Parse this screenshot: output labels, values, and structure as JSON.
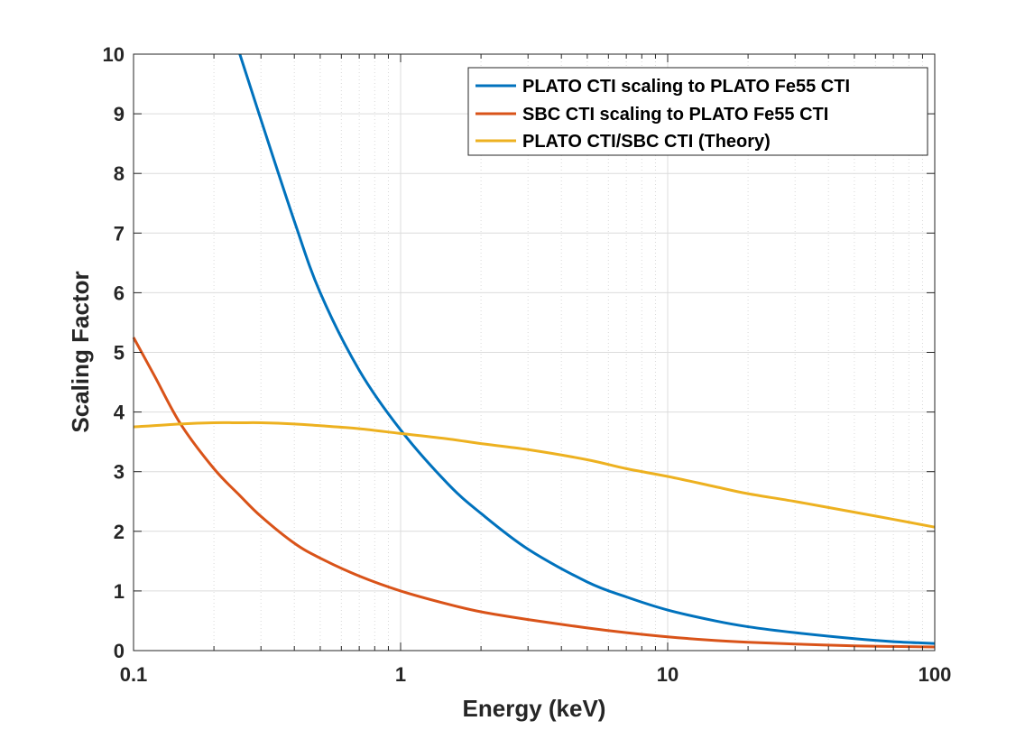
{
  "chart_data": {
    "type": "line",
    "title": "",
    "xlabel": "Energy (keV)",
    "ylabel": "Scaling Factor",
    "xscale": "log",
    "xlim": [
      0.1,
      100
    ],
    "ylim": [
      0,
      10
    ],
    "grid": true,
    "minor_grid": true,
    "legend_location": "top-right",
    "x_tick_labels": [
      "0.1",
      "1",
      "10",
      "100"
    ],
    "x_ticks": [
      0.1,
      1,
      10,
      100
    ],
    "y_ticks": [
      0,
      1,
      2,
      3,
      4,
      5,
      6,
      7,
      8,
      9,
      10
    ],
    "y_tick_labels": [
      "0",
      "1",
      "2",
      "3",
      "4",
      "5",
      "6",
      "7",
      "8",
      "9",
      "10"
    ],
    "series": [
      {
        "name": "PLATO CTI scaling to PLATO Fe55 CTI",
        "color": "#0072BD",
        "x": [
          0.25,
          0.3,
          0.4,
          0.5,
          0.7,
          1,
          1.5,
          2,
          3,
          5,
          7,
          10,
          15,
          20,
          30,
          50,
          70,
          100
        ],
        "y": [
          10.0,
          8.9,
          7.2,
          6.0,
          4.7,
          3.7,
          2.8,
          2.3,
          1.7,
          1.15,
          0.9,
          0.68,
          0.5,
          0.4,
          0.3,
          0.2,
          0.15,
          0.12
        ]
      },
      {
        "name": "SBC CTI scaling to PLATO Fe55 CTI",
        "color": "#D95319",
        "x": [
          0.1,
          0.12,
          0.15,
          0.2,
          0.25,
          0.3,
          0.4,
          0.5,
          0.7,
          1,
          1.5,
          2,
          3,
          5,
          7,
          10,
          15,
          20,
          30,
          50,
          70,
          100
        ],
        "y": [
          5.25,
          4.6,
          3.8,
          3.05,
          2.6,
          2.25,
          1.8,
          1.55,
          1.25,
          1.0,
          0.78,
          0.65,
          0.52,
          0.38,
          0.3,
          0.23,
          0.17,
          0.14,
          0.11,
          0.08,
          0.07,
          0.06
        ]
      },
      {
        "name": "PLATO CTI/SBC CTI (Theory)",
        "color": "#EDB120",
        "x": [
          0.1,
          0.15,
          0.2,
          0.25,
          0.3,
          0.4,
          0.5,
          0.7,
          1,
          1.5,
          2,
          3,
          5,
          7,
          10,
          15,
          20,
          30,
          50,
          70,
          100
        ],
        "y": [
          3.75,
          3.8,
          3.82,
          3.82,
          3.82,
          3.8,
          3.77,
          3.72,
          3.64,
          3.55,
          3.47,
          3.37,
          3.2,
          3.05,
          2.92,
          2.75,
          2.63,
          2.5,
          2.32,
          2.2,
          2.07
        ]
      }
    ]
  }
}
